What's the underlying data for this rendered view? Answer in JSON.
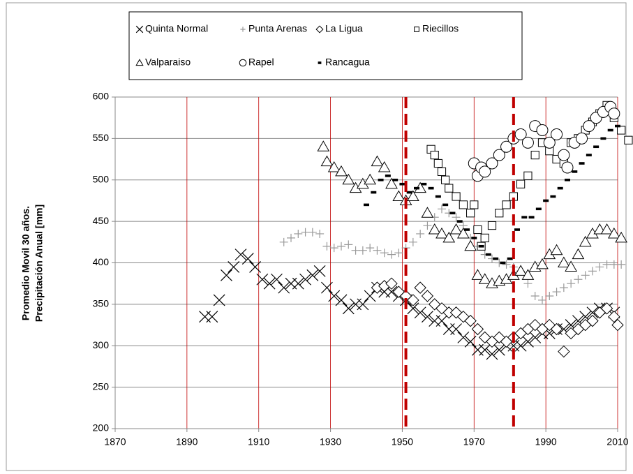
{
  "chart_data": {
    "type": "scatter",
    "ylabel": [
      "Promedio Movil 30 años.",
      "Precipitación Anual [mm]"
    ],
    "xlim": [
      1870,
      2010
    ],
    "xticks": [
      1870,
      1890,
      1910,
      1930,
      1950,
      1970,
      1990,
      2010
    ],
    "ylim": [
      200,
      600
    ],
    "yticks": [
      200,
      250,
      300,
      350,
      400,
      450,
      500,
      550,
      600
    ],
    "grid": true,
    "x_grid_color": "#c00000",
    "y_grid_color": "#888888",
    "reference_lines": [
      1951,
      1981
    ],
    "reference_color": "#c00000",
    "series": [
      {
        "name": "Quinta Normal",
        "marker": "x",
        "color": "#000000",
        "x": [
          1895,
          1897,
          1899,
          1901,
          1903,
          1905,
          1907,
          1909,
          1911,
          1913,
          1915,
          1917,
          1919,
          1921,
          1923,
          1925,
          1927,
          1929,
          1931,
          1933,
          1935,
          1937,
          1939,
          1941,
          1943,
          1945,
          1947,
          1949,
          1951,
          1953,
          1955,
          1957,
          1959,
          1961,
          1963,
          1965,
          1967,
          1969,
          1971,
          1973,
          1975,
          1977,
          1979,
          1981,
          1983,
          1985,
          1987,
          1989,
          1991,
          1993,
          1995,
          1997,
          1999,
          2001,
          2003,
          2005,
          2007,
          2009
        ],
        "values": [
          335,
          335,
          355,
          385,
          395,
          410,
          405,
          395,
          380,
          375,
          380,
          370,
          375,
          375,
          380,
          385,
          390,
          370,
          360,
          355,
          345,
          350,
          350,
          360,
          370,
          365,
          365,
          360,
          355,
          345,
          340,
          335,
          330,
          330,
          320,
          320,
          310,
          305,
          295,
          295,
          290,
          295,
          300,
          300,
          300,
          305,
          310,
          315,
          315,
          320,
          320,
          325,
          330,
          335,
          340,
          345,
          345,
          340
        ]
      },
      {
        "name": "Punta Arenas",
        "marker": "plus",
        "color": "#999999",
        "x": [
          1917,
          1919,
          1921,
          1923,
          1925,
          1927,
          1929,
          1931,
          1933,
          1935,
          1937,
          1939,
          1941,
          1943,
          1945,
          1947,
          1949,
          1951,
          1953,
          1955,
          1957,
          1959,
          1961,
          1963,
          1965,
          1967,
          1969,
          1971,
          1973,
          1975,
          1977,
          1979,
          1981,
          1983,
          1985,
          1987,
          1989,
          1991,
          1993,
          1995,
          1997,
          1999,
          2001,
          2003,
          2005,
          2007,
          2009,
          2011
        ],
        "values": [
          425,
          430,
          435,
          437,
          437,
          435,
          420,
          418,
          420,
          422,
          415,
          415,
          418,
          415,
          412,
          410,
          412,
          418,
          425,
          435,
          445,
          455,
          465,
          460,
          455,
          445,
          430,
          420,
          410,
          405,
          400,
          398,
          395,
          390,
          375,
          360,
          355,
          360,
          365,
          370,
          375,
          380,
          385,
          390,
          395,
          398,
          398,
          398
        ]
      },
      {
        "name": "La Ligua",
        "marker": "diamond",
        "color": "#000000",
        "x": [
          1943,
          1945,
          1947,
          1949,
          1951,
          1953,
          1955,
          1957,
          1959,
          1961,
          1963,
          1965,
          1967,
          1969,
          1971,
          1973,
          1975,
          1977,
          1979,
          1981,
          1983,
          1985,
          1987,
          1989,
          1991,
          1993,
          1995,
          1997,
          1999,
          2001,
          2003,
          2005,
          2007,
          2009,
          2010
        ],
        "values": [
          370,
          372,
          375,
          365,
          360,
          355,
          370,
          360,
          350,
          345,
          340,
          340,
          335,
          330,
          320,
          310,
          305,
          310,
          305,
          310,
          315,
          320,
          325,
          320,
          325,
          320,
          293,
          315,
          320,
          325,
          330,
          340,
          345,
          335,
          325
        ]
      },
      {
        "name": "Riecillos",
        "marker": "square",
        "color": "#000000",
        "x": [
          1958,
          1959,
          1960,
          1961,
          1962,
          1963,
          1965,
          1967,
          1969,
          1970,
          1971,
          1972,
          1973,
          1975,
          1977,
          1979,
          1981,
          1983,
          1985,
          1987,
          1989,
          1991,
          1993,
          1995,
          1997,
          1999,
          2001,
          2003,
          2005,
          2007,
          2009,
          2011,
          2013
        ],
        "values": [
          537,
          530,
          520,
          510,
          500,
          490,
          480,
          470,
          460,
          470,
          440,
          420,
          430,
          445,
          460,
          470,
          480,
          495,
          505,
          530,
          545,
          535,
          525,
          520,
          545,
          550,
          560,
          570,
          580,
          590,
          575,
          560,
          548
        ]
      },
      {
        "name": "Valparaiso",
        "marker": "triangle",
        "color": "#000000",
        "x": [
          1928,
          1929,
          1931,
          1933,
          1935,
          1937,
          1939,
          1941,
          1943,
          1945,
          1947,
          1949,
          1951,
          1953,
          1955,
          1957,
          1959,
          1961,
          1963,
          1965,
          1967,
          1969,
          1971,
          1973,
          1975,
          1977,
          1979,
          1981,
          1983,
          1985,
          1987,
          1989,
          1991,
          1993,
          1995,
          1997,
          1999,
          2001,
          2003,
          2005,
          2007,
          2009,
          2011
        ],
        "values": [
          540,
          522,
          515,
          510,
          500,
          490,
          495,
          500,
          522,
          515,
          495,
          480,
          475,
          480,
          490,
          460,
          440,
          435,
          430,
          440,
          435,
          420,
          385,
          380,
          375,
          378,
          380,
          385,
          390,
          385,
          395,
          398,
          410,
          415,
          400,
          395,
          410,
          425,
          435,
          440,
          440,
          435,
          430
        ]
      },
      {
        "name": "Rapel",
        "marker": "circle",
        "color": "#000000",
        "x": [
          1970,
          1971,
          1972,
          1973,
          1975,
          1977,
          1979,
          1981,
          1983,
          1985,
          1987,
          1989,
          1991,
          1993,
          1995,
          1996,
          1998,
          2000,
          2002,
          2004,
          2006,
          2008,
          2009
        ],
        "values": [
          520,
          505,
          515,
          510,
          520,
          530,
          540,
          550,
          555,
          545,
          565,
          560,
          545,
          555,
          530,
          515,
          545,
          550,
          565,
          575,
          582,
          588,
          580
        ]
      },
      {
        "name": "Rancagua",
        "marker": "dash",
        "color": "#000000",
        "x": [
          1940,
          1942,
          1944,
          1946,
          1948,
          1950,
          1952,
          1954,
          1956,
          1958,
          1960,
          1962,
          1964,
          1966,
          1968,
          1970,
          1972,
          1974,
          1976,
          1978,
          1980,
          1982,
          1984,
          1986,
          1988,
          1990,
          1992,
          1994,
          1996,
          1998,
          2000,
          2002,
          2004,
          2006,
          2008,
          2010
        ],
        "values": [
          470,
          485,
          500,
          505,
          500,
          495,
          485,
          490,
          495,
          490,
          480,
          470,
          460,
          450,
          440,
          430,
          420,
          410,
          405,
          400,
          405,
          440,
          455,
          455,
          465,
          475,
          480,
          490,
          500,
          510,
          520,
          530,
          540,
          550,
          560,
          565
        ]
      }
    ]
  }
}
